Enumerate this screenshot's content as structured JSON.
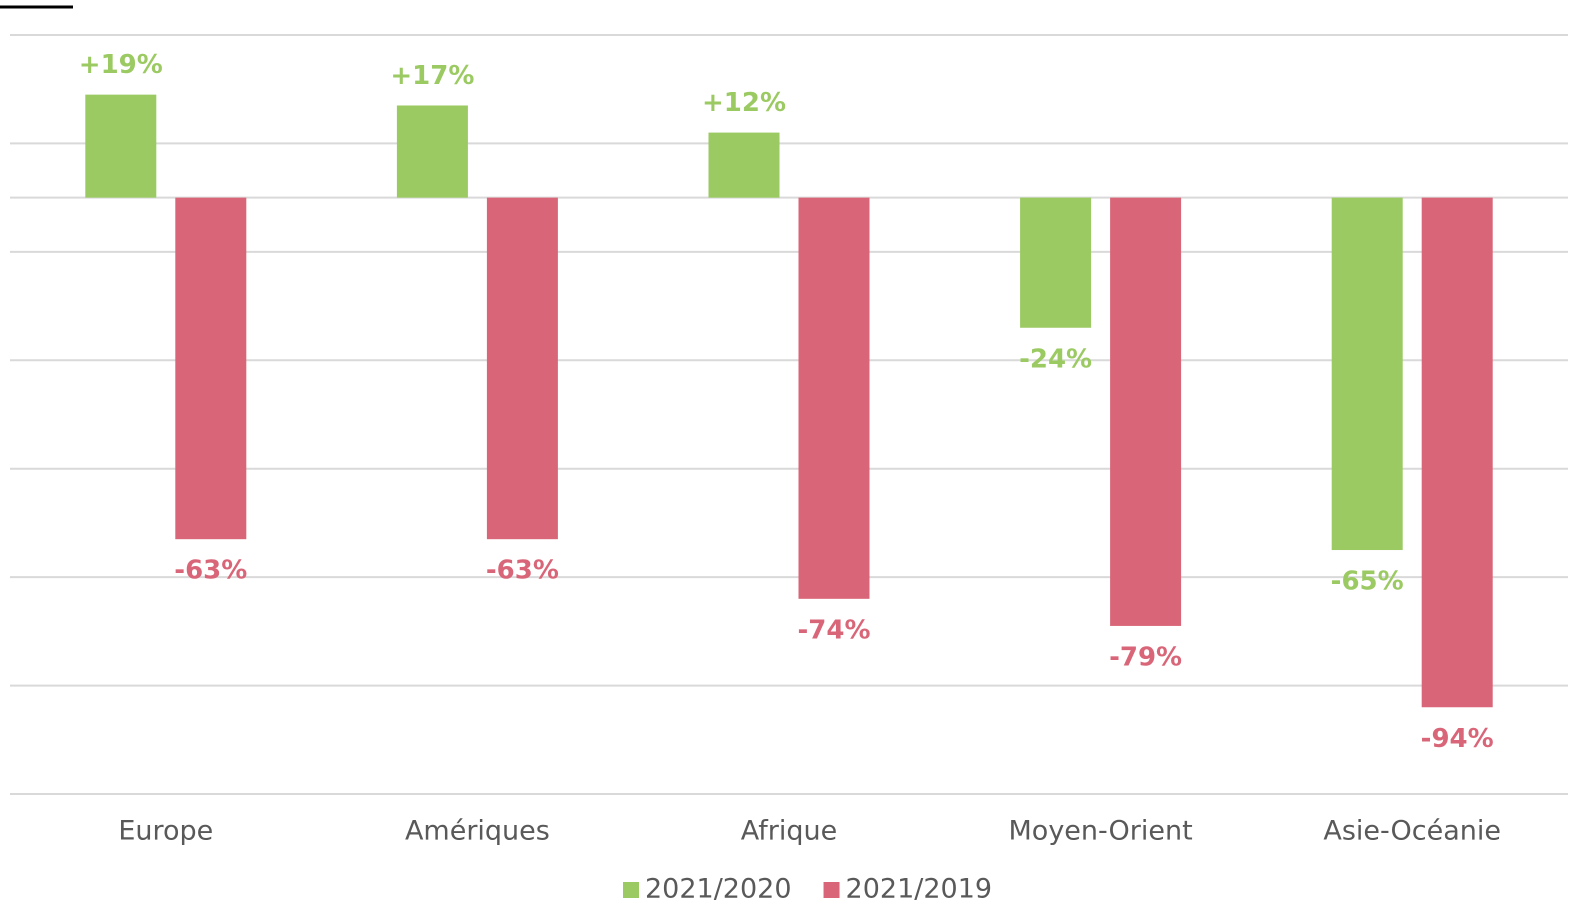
{
  "chart_data": {
    "type": "bar",
    "categories": [
      "Europe",
      "Amériques",
      "Afrique",
      "Moyen-Orient",
      "Asie-Océanie"
    ],
    "series": [
      {
        "name": "2021/2020",
        "color": "#9bca62",
        "values": [
          19,
          17,
          12,
          -24,
          -65
        ],
        "value_labels": [
          "+19%",
          "+17%",
          "+12%",
          "-24%",
          "-65%"
        ]
      },
      {
        "name": "2021/2019",
        "color": "#d96678",
        "values": [
          -63,
          -63,
          -74,
          -79,
          -94
        ],
        "value_labels": [
          "-63%",
          "-63%",
          "-74%",
          "-79%",
          "-94%"
        ]
      }
    ],
    "ylim": [
      -110,
      30
    ],
    "yticks": [
      -110,
      -90,
      -70,
      -50,
      -30,
      -10,
      10,
      30
    ],
    "grid": true,
    "legend": "bottom"
  }
}
